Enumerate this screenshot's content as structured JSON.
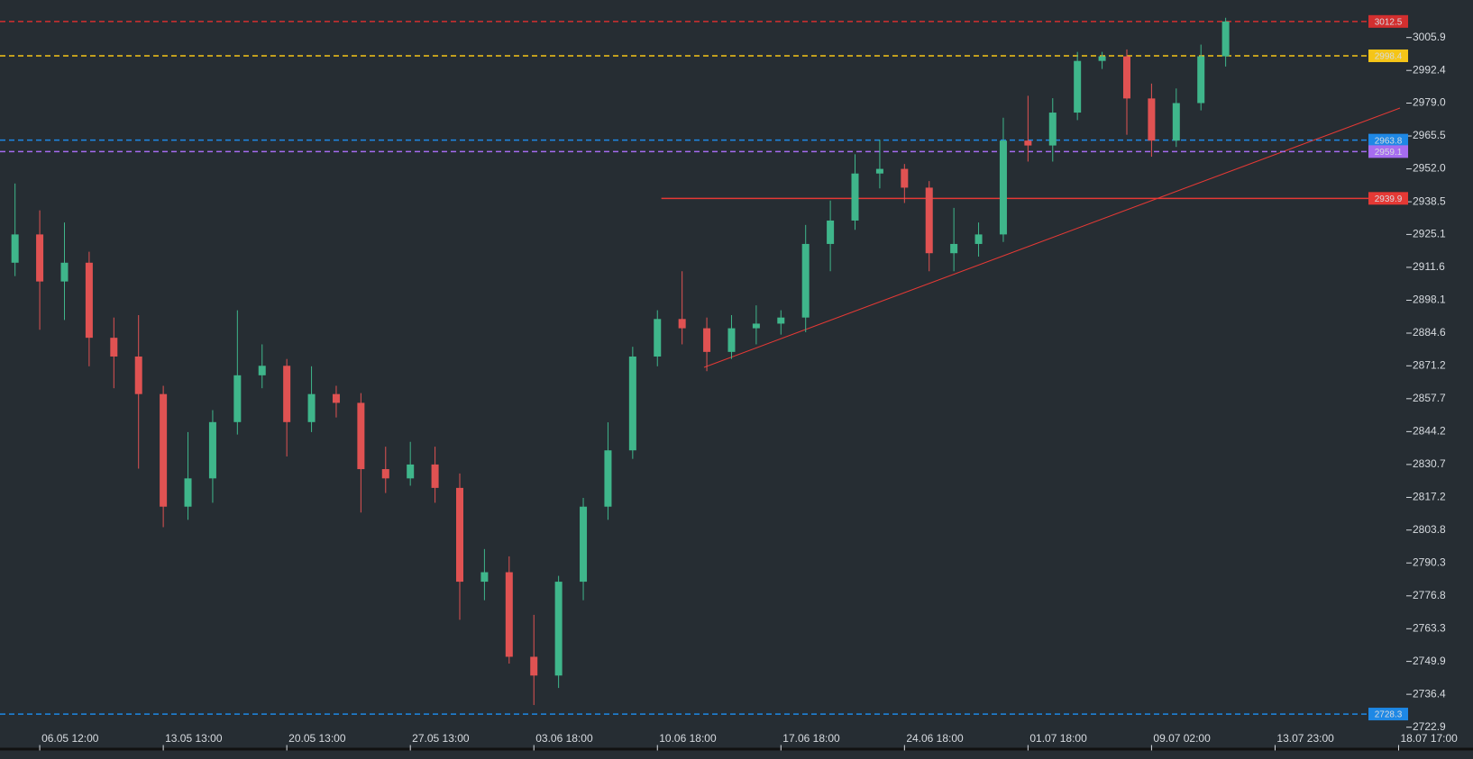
{
  "chart_data": {
    "type": "candlestick",
    "categories": [
      null,
      "06.05 12:00",
      null,
      null,
      null,
      null,
      "13.05 13:00",
      null,
      null,
      null,
      null,
      "20.05 13:00",
      null,
      null,
      null,
      null,
      "27.05 13:00",
      null,
      null,
      null,
      null,
      "03.06 18:00",
      null,
      null,
      null,
      null,
      "10.06 18:00",
      null,
      null,
      null,
      null,
      "17.06 18:00",
      null,
      null,
      null,
      null,
      "24.06 18:00",
      null,
      null,
      null,
      null,
      "01.07 18:00",
      null,
      null,
      null,
      null,
      "09.07 02:00",
      null,
      null,
      null,
      null,
      "13.07 23:00",
      null,
      null,
      null,
      null,
      "18.07 17:00"
    ],
    "open": [
      2913.5,
      2925.1,
      2905.8,
      2913.5,
      2882.7,
      2875.0,
      2859.6,
      2813.4,
      2825.0,
      2848.1,
      2867.3,
      2871.2,
      2848.1,
      2859.6,
      2856.0,
      2828.8,
      2825.0,
      2830.7,
      2821.1,
      2782.6,
      2786.5,
      2751.8,
      2744.1,
      2782.6,
      2813.4,
      2836.5,
      2875.0,
      2890.4,
      2886.6,
      2876.9,
      2886.6,
      2888.5,
      2891.0,
      2921.2,
      2930.8,
      2950.1,
      2952.0,
      2944.3,
      2917.4,
      2921.2,
      2925.1,
      2963.6,
      2961.6,
      2975.1,
      2996.3,
      2998.2,
      2980.9,
      2963.6,
      2979.0,
      2998.2,
      null,
      null,
      null,
      null,
      null,
      null,
      null
    ],
    "high": [
      2946.0,
      2935.0,
      2930.0,
      2918.0,
      2891.0,
      2892.0,
      2863.0,
      2844.0,
      2853.0,
      2894.0,
      2880.0,
      2874.0,
      2871.0,
      2863.0,
      2860.0,
      2838.0,
      2840.0,
      2838.0,
      2827.0,
      2796.0,
      2793.0,
      2769.0,
      2785.0,
      2817.0,
      2848.0,
      2879.0,
      2894.0,
      2910.0,
      2891.0,
      2892.0,
      2896.0,
      2894.0,
      2929.0,
      2939.0,
      2958.0,
      2964.0,
      2954.0,
      2947.0,
      2936.0,
      2930.0,
      2973.0,
      2982.0,
      2981.0,
      3000.0,
      3000.0,
      3001.0,
      2987.0,
      2985.0,
      3003.0,
      3014.0,
      null,
      null,
      null,
      null,
      null,
      null,
      null
    ],
    "low": [
      2908.0,
      2886.0,
      2890.0,
      2871.0,
      2862.0,
      2829.0,
      2805.0,
      2808.0,
      2815.0,
      2843.0,
      2862.0,
      2834.0,
      2844.0,
      2850.0,
      2811.0,
      2819.0,
      2822.0,
      2815.0,
      2767.0,
      2775.0,
      2749.0,
      2732.0,
      2739.0,
      2775.0,
      2808.0,
      2833.0,
      2871.0,
      2880.0,
      2869.0,
      2874.0,
      2880.0,
      2884.0,
      2885.0,
      2910.0,
      2927.0,
      2944.0,
      2938.0,
      2910.0,
      2910.0,
      2916.0,
      2922.0,
      2955.0,
      2955.0,
      2972.0,
      2993.0,
      2966.0,
      2957.0,
      2961.0,
      2976.0,
      2994.0,
      null,
      null,
      null,
      null,
      null,
      null,
      null
    ],
    "close": [
      2925.1,
      2905.8,
      2913.5,
      2882.7,
      2875.0,
      2859.6,
      2813.4,
      2825.0,
      2848.1,
      2867.3,
      2871.2,
      2848.1,
      2859.6,
      2856.0,
      2828.8,
      2825.0,
      2830.7,
      2821.1,
      2782.6,
      2786.5,
      2751.8,
      2744.1,
      2782.6,
      2813.4,
      2836.5,
      2875.0,
      2890.4,
      2886.6,
      2876.9,
      2886.6,
      2888.5,
      2891.0,
      2921.2,
      2930.8,
      2950.1,
      2952.0,
      2944.3,
      2917.4,
      2921.2,
      2925.1,
      2963.6,
      2961.6,
      2975.1,
      2996.3,
      2998.2,
      2980.9,
      2963.6,
      2979.0,
      2998.2,
      3012.5,
      null,
      null,
      null,
      null,
      null,
      null,
      null
    ],
    "up_color": "#3fb68b",
    "down_color": "#e05252",
    "ylim": [
      2714.1,
      3021.3
    ],
    "yticks": [
      2722.9,
      2736.4,
      2749.9,
      2763.3,
      2776.8,
      2790.3,
      2803.8,
      2817.2,
      2830.7,
      2844.2,
      2857.7,
      2871.2,
      2884.6,
      2898.1,
      2911.6,
      2925.1,
      2938.5,
      {
        "value": 2952,
        "label": "2952.0"
      },
      2965.5,
      {
        "value": 2979,
        "label": "2979.0"
      },
      2992.4,
      3005.9
    ],
    "levels": [
      {
        "value": 3012.5,
        "color": "#d32f2f",
        "style": "dashed"
      },
      {
        "value": 2998.4,
        "color": "#f5c518",
        "style": "dashed"
      },
      {
        "value": 2963.8,
        "color": "#1e88e5",
        "style": "dashed"
      },
      {
        "value": 2959.1,
        "color": "#a66cf0",
        "style": "dashed"
      },
      {
        "value": 2939.9,
        "color": "#e53935",
        "style": "solid"
      },
      {
        "value": 2728.3,
        "color": "#1e88e5",
        "style": "dashed"
      }
    ]
  }
}
